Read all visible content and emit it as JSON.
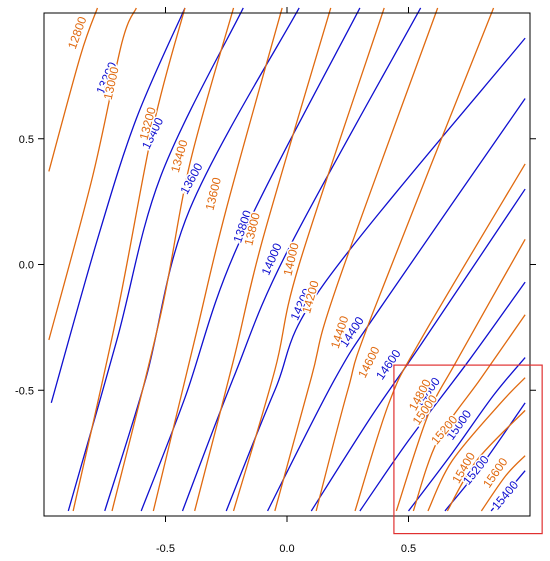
{
  "chart_data": {
    "type": "contour",
    "title": "",
    "xlabel": "",
    "ylabel": "",
    "xlim": [
      -1.0,
      1.0
    ],
    "ylim": [
      -1.0,
      1.0
    ],
    "x_ticks": [
      -0.5,
      0.0,
      0.5
    ],
    "x_tick_labels": [
      "-0.5",
      "0.0",
      "0.5"
    ],
    "y_ticks": [
      -0.5,
      0.0,
      0.5
    ],
    "y_tick_labels": [
      "-0.5",
      "0.0",
      "0.5"
    ],
    "grid": false,
    "highlight_box": {
      "x": [
        0.44,
        1.05
      ],
      "y": [
        -1.07,
        -0.4
      ],
      "color": "#e03030"
    },
    "series": [
      {
        "color": "#1010d0",
        "levels": [
          {
            "value": 13200,
            "label": "13200",
            "label_at": [
              -0.74,
              0.74
            ],
            "points": [
              [
                -0.97,
                -0.55
              ],
              [
                -0.78,
                0.1
              ],
              [
                -0.62,
                0.58
              ],
              [
                -0.42,
                1.02
              ]
            ]
          },
          {
            "value": 13400,
            "label": "13400",
            "label_at": [
              -0.55,
              0.52
            ],
            "points": [
              [
                -0.9,
                -0.98
              ],
              [
                -0.7,
                -0.3
              ],
              [
                -0.52,
                0.35
              ],
              [
                -0.18,
                1.02
              ]
            ]
          },
          {
            "value": 13600,
            "label": "13600",
            "label_at": [
              -0.39,
              0.34
            ],
            "points": [
              [
                -0.75,
                -0.98
              ],
              [
                -0.58,
                -0.45
              ],
              [
                -0.4,
                0.22
              ],
              [
                0.05,
                1.02
              ]
            ]
          },
          {
            "value": 13800,
            "label": "13800",
            "label_at": [
              -0.18,
              0.15
            ],
            "points": [
              [
                -0.6,
                -0.98
              ],
              [
                -0.42,
                -0.53
              ],
              [
                -0.2,
                0.08
              ],
              [
                0.3,
                1.02
              ]
            ]
          },
          {
            "value": 14000,
            "label": "14000",
            "label_at": [
              -0.06,
              0.02
            ],
            "points": [
              [
                -0.43,
                -0.98
              ],
              [
                -0.22,
                -0.45
              ],
              [
                0.0,
                0.05
              ],
              [
                0.55,
                1.02
              ]
            ]
          },
          {
            "value": 14200,
            "label": "14200",
            "label_at": [
              0.06,
              -0.16
            ],
            "points": [
              [
                -0.25,
                -0.98
              ],
              [
                -0.05,
                -0.5
              ],
              [
                0.15,
                -0.08
              ],
              [
                0.98,
                0.9
              ]
            ]
          },
          {
            "value": 14400,
            "label": "14400",
            "label_at": [
              0.27,
              -0.27
            ],
            "points": [
              [
                -0.08,
                -0.98
              ],
              [
                0.2,
                -0.45
              ],
              [
                0.4,
                -0.15
              ],
              [
                0.98,
                0.66
              ]
            ]
          },
          {
            "value": 14600,
            "label": "14600",
            "label_at": [
              0.42,
              -0.4
            ],
            "points": [
              [
                0.1,
                -0.98
              ],
              [
                0.35,
                -0.6
              ],
              [
                0.55,
                -0.32
              ],
              [
                0.98,
                0.3
              ]
            ]
          },
          {
            "value": 14800,
            "label": "14800",
            "label_at": [
              0.58,
              -0.51
            ],
            "points": [
              [
                0.3,
                -0.98
              ],
              [
                0.5,
                -0.7
              ],
              [
                0.75,
                -0.38
              ],
              [
                0.98,
                -0.07
              ]
            ]
          },
          {
            "value": 15000,
            "label": "15000",
            "label_at": [
              0.71,
              -0.64
            ],
            "points": [
              [
                0.5,
                -0.98
              ],
              [
                0.68,
                -0.75
              ],
              [
                0.85,
                -0.52
              ],
              [
                0.98,
                -0.37
              ]
            ]
          },
          {
            "value": 15200,
            "label": "15200",
            "label_at": [
              0.78,
              -0.82
            ],
            "points": [
              [
                0.65,
                -0.98
              ],
              [
                0.8,
                -0.8
              ],
              [
                0.98,
                -0.55
              ]
            ]
          },
          {
            "value": 15400,
            "label": "15400",
            "label_at": [
              0.9,
              -0.92
            ],
            "points": [
              [
                0.84,
                -0.98
              ],
              [
                0.98,
                -0.82
              ]
            ]
          }
        ]
      },
      {
        "color": "#e06a10",
        "levels": [
          {
            "value": 12800,
            "label": "12800",
            "label_at": [
              -0.86,
              0.92
            ],
            "points": [
              [
                -0.98,
                0.37
              ],
              [
                -0.85,
                0.83
              ],
              [
                -0.78,
                1.02
              ]
            ]
          },
          {
            "value": 13000,
            "label": "13000",
            "label_at": [
              -0.72,
              0.72
            ],
            "points": [
              [
                -0.98,
                -0.3
              ],
              [
                -0.8,
                0.35
              ],
              [
                -0.68,
                0.88
              ],
              [
                -0.62,
                1.02
              ]
            ]
          },
          {
            "value": 13200,
            "label": "13200",
            "label_at": [
              -0.57,
              0.56
            ],
            "points": [
              [
                -0.88,
                -0.98
              ],
              [
                -0.7,
                -0.2
              ],
              [
                -0.55,
                0.55
              ],
              [
                -0.42,
                1.02
              ]
            ]
          },
          {
            "value": 13400,
            "label": "13400",
            "label_at": [
              -0.44,
              0.43
            ],
            "points": [
              [
                -0.72,
                -0.98
              ],
              [
                -0.52,
                -0.2
              ],
              [
                -0.4,
                0.4
              ],
              [
                -0.22,
                1.02
              ]
            ]
          },
          {
            "value": 13600,
            "label": "13600",
            "label_at": [
              -0.3,
              0.28
            ],
            "points": [
              [
                -0.55,
                -0.98
              ],
              [
                -0.38,
                -0.3
              ],
              [
                -0.25,
                0.22
              ],
              [
                -0.02,
                1.02
              ]
            ]
          },
          {
            "value": 13800,
            "label": "13800",
            "label_at": [
              -0.14,
              0.14
            ],
            "points": [
              [
                -0.38,
                -0.98
              ],
              [
                -0.22,
                -0.38
              ],
              [
                -0.1,
                0.1
              ],
              [
                0.18,
                1.02
              ]
            ]
          },
          {
            "value": 14000,
            "label": "14000",
            "label_at": [
              0.02,
              0.02
            ],
            "points": [
              [
                -0.22,
                -0.98
              ],
              [
                -0.05,
                -0.42
              ],
              [
                0.05,
                0.0
              ],
              [
                0.4,
                1.02
              ]
            ]
          },
          {
            "value": 14200,
            "label": "14200",
            "label_at": [
              0.1,
              -0.13
            ],
            "points": [
              [
                -0.05,
                -0.98
              ],
              [
                0.1,
                -0.45
              ],
              [
                0.2,
                -0.1
              ],
              [
                0.62,
                1.02
              ]
            ]
          },
          {
            "value": 14400,
            "label": "14400",
            "label_at": [
              0.22,
              -0.27
            ],
            "points": [
              [
                0.12,
                -0.98
              ],
              [
                0.25,
                -0.5
              ],
              [
                0.35,
                -0.2
              ],
              [
                0.85,
                1.02
              ]
            ]
          },
          {
            "value": 14600,
            "label": "14600",
            "label_at": [
              0.34,
              -0.39
            ],
            "points": [
              [
                0.28,
                -0.98
              ],
              [
                0.42,
                -0.55
              ],
              [
                0.55,
                -0.3
              ],
              [
                0.98,
                0.4
              ]
            ]
          },
          {
            "value": 14800,
            "label": "14800",
            "label_at": [
              0.55,
              -0.52
            ],
            "points": [
              [
                0.45,
                -0.98
              ],
              [
                0.58,
                -0.6
              ],
              [
                0.7,
                -0.38
              ],
              [
                0.98,
                0.1
              ]
            ]
          },
          {
            "value": 15000,
            "label": "15000",
            "label_at": [
              0.57,
              -0.58
            ],
            "points": [
              [
                0.52,
                -0.98
              ],
              [
                0.62,
                -0.7
              ],
              [
                0.8,
                -0.45
              ],
              [
                0.98,
                -0.2
              ]
            ]
          },
          {
            "value": 15200,
            "label": "15200",
            "label_at": [
              0.65,
              -0.66
            ],
            "points": [
              [
                0.58,
                -0.98
              ],
              [
                0.68,
                -0.78
              ],
              [
                0.88,
                -0.55
              ],
              [
                0.98,
                -0.45
              ]
            ]
          },
          {
            "value": 15400,
            "label": "15400",
            "label_at": [
              0.73,
              -0.81
            ],
            "points": [
              [
                0.66,
                -0.98
              ],
              [
                0.78,
                -0.78
              ],
              [
                0.98,
                -0.58
              ]
            ]
          },
          {
            "value": 15600,
            "label": "15600",
            "label_at": [
              0.86,
              -0.83
            ],
            "points": [
              [
                0.8,
                -0.98
              ],
              [
                0.9,
                -0.84
              ],
              [
                0.98,
                -0.76
              ]
            ]
          }
        ]
      }
    ]
  }
}
